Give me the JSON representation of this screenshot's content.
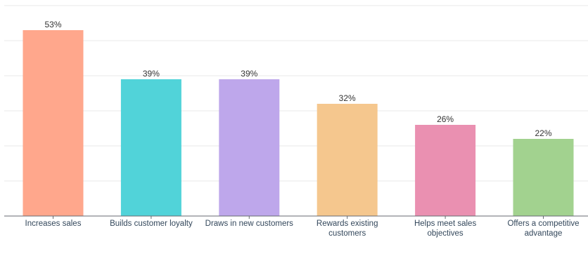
{
  "chart_data": {
    "type": "bar",
    "categories": [
      [
        "Increases sales"
      ],
      [
        "Builds customer loyalty"
      ],
      [
        "Draws in new customers"
      ],
      [
        "Rewards existing",
        "customers"
      ],
      [
        "Helps meet sales",
        "objectives"
      ],
      [
        "Offers a competitive",
        "advantage"
      ]
    ],
    "values": [
      53,
      39,
      39,
      32,
      26,
      22
    ],
    "value_labels": [
      "53%",
      "39%",
      "39%",
      "32%",
      "26%",
      "22%"
    ],
    "colors": [
      "#ffa78c",
      "#51d3d9",
      "#bea7eb",
      "#f5c78e",
      "#ea90b1",
      "#a2d28f"
    ],
    "ylim": [
      0,
      60
    ],
    "grid_step": 10,
    "grid": true,
    "legend": "none",
    "title": "",
    "xlabel": "",
    "ylabel": ""
  }
}
